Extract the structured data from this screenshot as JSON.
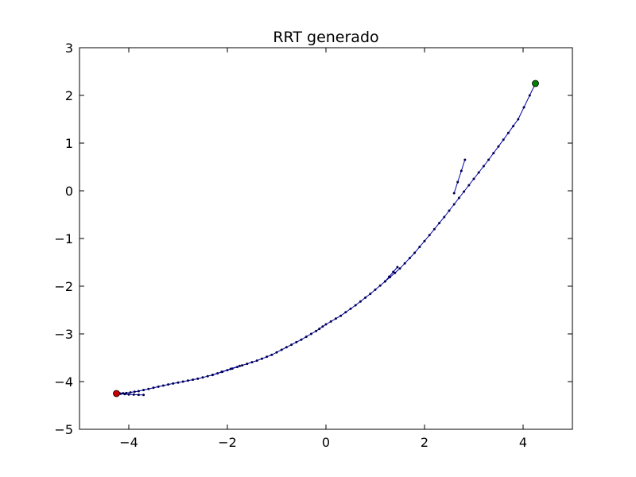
{
  "chart_data": {
    "type": "scatter",
    "title": "RRT generado",
    "xlabel": "",
    "ylabel": "",
    "xlim": [
      -5,
      5
    ],
    "ylim": [
      -5,
      3
    ],
    "xticks": [
      -4,
      -2,
      0,
      2,
      4
    ],
    "xtick_labels": [
      "−4",
      "−2",
      "0",
      "2",
      "4"
    ],
    "yticks": [
      -5,
      -4,
      -3,
      -2,
      -1,
      0,
      1,
      2,
      3
    ],
    "ytick_labels": [
      "−5",
      "−4",
      "−3",
      "−2",
      "−1",
      "0",
      "1",
      "2",
      "3"
    ],
    "grid": false,
    "colors": {
      "tree": "#0000aa",
      "node": "#00004d",
      "start": "#cc0000",
      "goal": "#008000"
    },
    "tree_path": [
      [
        -4.25,
        -4.25
      ],
      [
        -4.05,
        -4.24
      ],
      [
        -3.8,
        -4.2
      ],
      [
        -3.5,
        -4.13
      ],
      [
        -3.2,
        -4.06
      ],
      [
        -2.9,
        -4.0
      ],
      [
        -2.6,
        -3.94
      ],
      [
        -2.3,
        -3.86
      ],
      [
        -2.0,
        -3.76
      ],
      [
        -1.7,
        -3.66
      ],
      [
        -1.4,
        -3.56
      ],
      [
        -1.1,
        -3.44
      ],
      [
        -0.8,
        -3.28
      ],
      [
        -0.5,
        -3.12
      ],
      [
        -0.2,
        -2.94
      ],
      [
        0.0,
        -2.8
      ],
      [
        0.3,
        -2.62
      ],
      [
        0.6,
        -2.4
      ],
      [
        0.9,
        -2.16
      ],
      [
        1.2,
        -1.9
      ],
      [
        1.5,
        -1.63
      ],
      [
        1.8,
        -1.3
      ],
      [
        2.1,
        -0.93
      ],
      [
        2.4,
        -0.55
      ],
      [
        2.7,
        -0.15
      ],
      [
        3.0,
        0.25
      ],
      [
        3.3,
        0.65
      ],
      [
        3.6,
        1.07
      ],
      [
        3.9,
        1.5
      ],
      [
        4.25,
        2.25
      ]
    ],
    "branches": [
      [
        [
          -4.25,
          -4.25
        ],
        [
          -4.0,
          -4.27
        ],
        [
          -3.7,
          -4.28
        ]
      ],
      [
        [
          1.2,
          -1.9
        ],
        [
          1.45,
          -1.6
        ]
      ],
      [
        [
          2.6,
          -0.05
        ],
        [
          2.82,
          0.65
        ]
      ],
      [
        [
          -2.3,
          -3.86
        ],
        [
          -1.75,
          -3.67
        ]
      ]
    ],
    "start": [
      -4.25,
      -4.25
    ],
    "goal": [
      4.25,
      2.25
    ]
  }
}
